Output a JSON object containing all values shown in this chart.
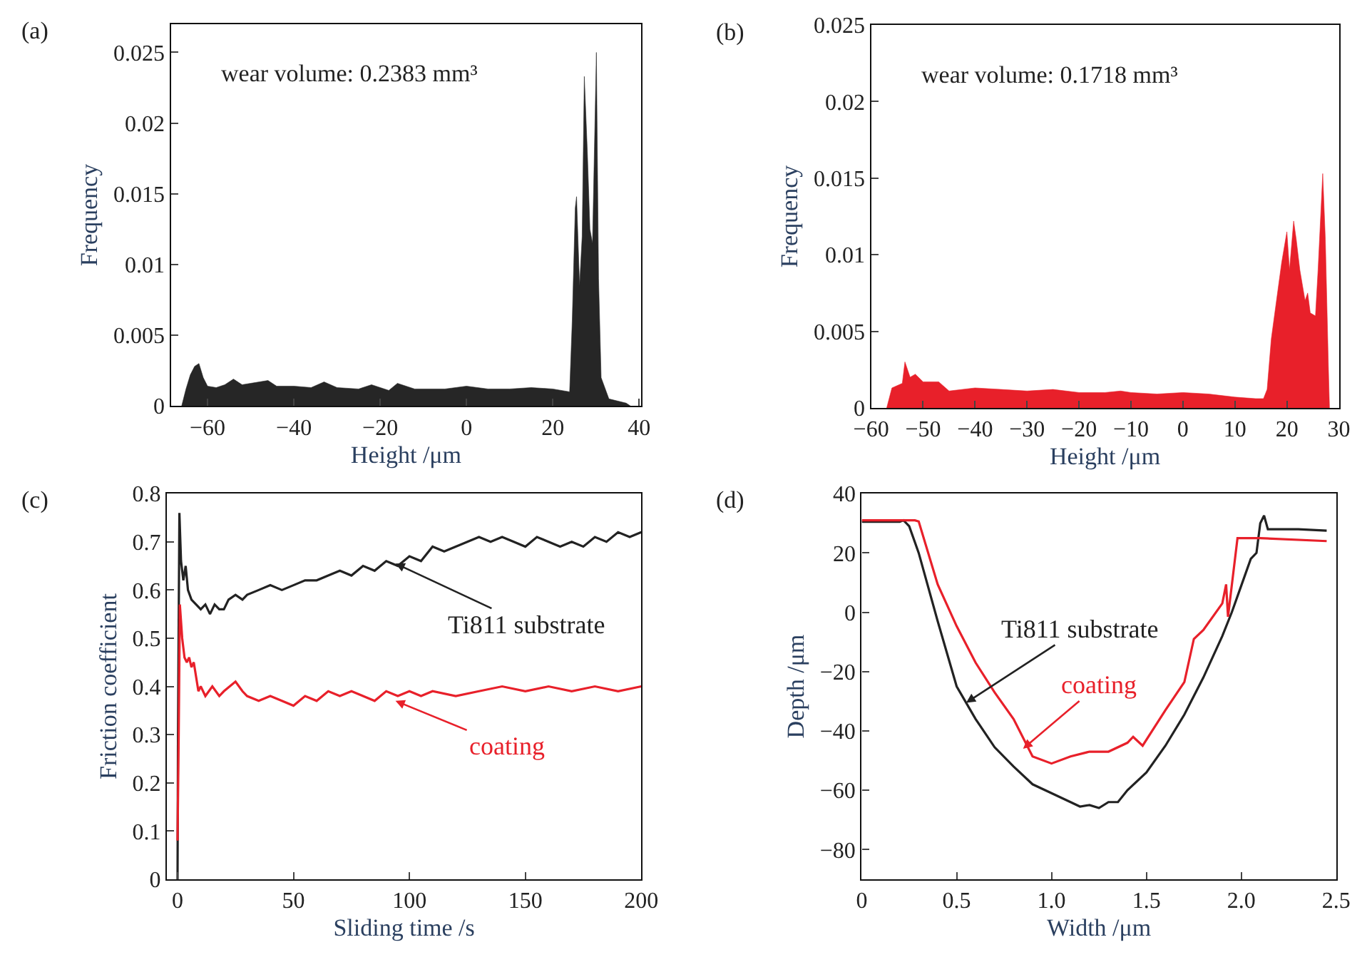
{
  "chart_data": [
    {
      "type": "area",
      "title": "(a)",
      "xlabel": "Height /μm",
      "ylabel": "Frequency",
      "xlim": [
        -68.5,
        40.5
      ],
      "ylim": [
        0,
        0.027
      ],
      "xticks": [
        -60,
        -40,
        -20,
        0,
        20,
        40
      ],
      "yticks": [
        0,
        0.005,
        0.01,
        0.015,
        0.02,
        0.025
      ],
      "annotations": [
        "wear volume: 0.2383 mm³"
      ],
      "x": [
        -66,
        -65,
        -64,
        -63,
        -62,
        -61,
        -60,
        -58,
        -56,
        -54,
        -52,
        -50,
        -46,
        -44,
        -40,
        -36,
        -33,
        -30,
        -25,
        -22,
        -18,
        -16,
        -12,
        -5,
        0,
        5,
        10,
        15,
        20,
        23.9,
        24.5,
        25.2,
        25.5,
        26.2,
        26.8,
        27.3,
        28,
        28.6,
        29.2,
        30.1,
        30.6,
        31.2,
        33,
        37,
        38
      ],
      "series": [
        {
          "color": "#262626",
          "values": [
            0,
            0.0012,
            0.0022,
            0.0028,
            0.003,
            0.002,
            0.0014,
            0.0013,
            0.0015,
            0.0019,
            0.0015,
            0.0016,
            0.0018,
            0.0014,
            0.0014,
            0.0013,
            0.0017,
            0.0013,
            0.0012,
            0.0015,
            0.0011,
            0.0016,
            0.0012,
            0.0012,
            0.0014,
            0.0012,
            0.0012,
            0.0013,
            0.0012,
            0.001,
            0.006,
            0.014,
            0.0148,
            0.0085,
            0.012,
            0.0233,
            0.018,
            0.0125,
            0.0115,
            0.025,
            0.009,
            0.002,
            0.0005,
            0.0002,
            0
          ]
        }
      ]
    },
    {
      "type": "area",
      "title": "(b)",
      "xlabel": "Height /μm",
      "ylabel": "Frequency",
      "xlim": [
        -60,
        30
      ],
      "ylim": [
        0,
        0.025
      ],
      "xticks": [
        -60,
        -50,
        -40,
        -30,
        -20,
        -10,
        0,
        10,
        20,
        30
      ],
      "yticks": [
        0,
        0.005,
        0.01,
        0.015,
        0.02,
        0.025
      ],
      "annotations": [
        "wear volume: 0.1718 mm³"
      ],
      "x": [
        -57,
        -56,
        -54,
        -53.5,
        -52.5,
        -51.5,
        -50,
        -47,
        -45,
        -40,
        -35,
        -30,
        -25,
        -20,
        -15,
        -12,
        -10,
        -5,
        0,
        5,
        10,
        14,
        15.5,
        16.2,
        17,
        18,
        19,
        20,
        20.5,
        21.3,
        21.8,
        22.5,
        23.5,
        24,
        24.5,
        25.5,
        26,
        26.9,
        27.4,
        28,
        28.2
      ],
      "series": [
        {
          "color": "#e8202a",
          "values": [
            0,
            0.0013,
            0.0016,
            0.003,
            0.002,
            0.0022,
            0.0017,
            0.0017,
            0.0011,
            0.0013,
            0.0012,
            0.0011,
            0.0012,
            0.001,
            0.001,
            0.0011,
            0.001,
            0.0009,
            0.001,
            0.0009,
            0.0007,
            0.0006,
            0.0006,
            0.0012,
            0.0045,
            0.007,
            0.0095,
            0.0115,
            0.009,
            0.0122,
            0.011,
            0.009,
            0.007,
            0.0075,
            0.0062,
            0.006,
            0.009,
            0.0153,
            0.011,
            0.0025,
            0
          ]
        }
      ]
    },
    {
      "type": "line",
      "title": "(c)",
      "xlabel": "Sliding time /s",
      "ylabel": "Friction coefficient",
      "xlim": [
        -4.6,
        200
      ],
      "ylim": [
        0,
        0.8
      ],
      "xticks": [
        0,
        50,
        100,
        150,
        200
      ],
      "yticks": [
        0,
        0.1,
        0.2,
        0.3,
        0.4,
        0.5,
        0.6,
        0.7,
        0.8
      ],
      "marker": "none",
      "line_style": "solid",
      "annotations": [
        {
          "text": "Ti811 substrate",
          "x": 94,
          "y": 0.655
        },
        {
          "text": "coating",
          "x": 94,
          "y": 0.37
        }
      ],
      "series": [
        {
          "color": "#222222",
          "x": [
            0,
            0.2,
            0.8,
            1.5,
            2.5,
            3.5,
            4.5,
            6,
            8,
            10,
            12,
            14,
            16,
            18,
            20,
            22,
            25,
            28,
            30,
            35,
            40,
            45,
            50,
            55,
            60,
            65,
            70,
            75,
            80,
            85,
            90,
            95,
            100,
            105,
            110,
            115,
            120,
            125,
            130,
            135,
            140,
            145,
            150,
            155,
            160,
            165,
            170,
            175,
            180,
            185,
            190,
            195,
            200
          ],
          "values": [
            0,
            0.3,
            0.76,
            0.66,
            0.62,
            0.65,
            0.6,
            0.58,
            0.57,
            0.56,
            0.57,
            0.55,
            0.57,
            0.56,
            0.56,
            0.58,
            0.59,
            0.58,
            0.59,
            0.6,
            0.61,
            0.6,
            0.61,
            0.62,
            0.62,
            0.63,
            0.64,
            0.63,
            0.65,
            0.64,
            0.66,
            0.65,
            0.67,
            0.66,
            0.69,
            0.68,
            0.69,
            0.7,
            0.71,
            0.7,
            0.71,
            0.7,
            0.69,
            0.71,
            0.7,
            0.69,
            0.7,
            0.69,
            0.71,
            0.7,
            0.72,
            0.71,
            0.72
          ]
        },
        {
          "color": "#e8202a",
          "x": [
            0,
            0.5,
            1,
            2,
            3,
            4,
            5,
            6,
            7,
            8,
            9,
            10,
            12,
            15,
            18,
            20,
            25,
            28,
            30,
            35,
            40,
            45,
            50,
            55,
            60,
            65,
            70,
            75,
            80,
            85,
            90,
            95,
            100,
            105,
            110,
            120,
            130,
            140,
            150,
            160,
            170,
            180,
            190,
            200
          ],
          "values": [
            0.08,
            0.3,
            0.57,
            0.5,
            0.46,
            0.45,
            0.46,
            0.44,
            0.45,
            0.42,
            0.39,
            0.4,
            0.38,
            0.4,
            0.38,
            0.39,
            0.41,
            0.39,
            0.38,
            0.37,
            0.38,
            0.37,
            0.36,
            0.38,
            0.37,
            0.39,
            0.38,
            0.39,
            0.38,
            0.37,
            0.39,
            0.38,
            0.39,
            0.38,
            0.39,
            0.38,
            0.39,
            0.4,
            0.39,
            0.4,
            0.39,
            0.4,
            0.39,
            0.4
          ]
        }
      ]
    },
    {
      "type": "line",
      "title": "(d)",
      "xlabel": "Width /μm",
      "ylabel": "Depth /μm",
      "xlim": [
        0,
        2.5
      ],
      "ylim": [
        -90,
        40
      ],
      "xticks": [
        0,
        0.5,
        {
          "value": 1,
          "label": "1.0"
        },
        1.5,
        {
          "value": 2,
          "label": "2.0"
        },
        2.5
      ],
      "yticks": [
        -80,
        -60,
        -40,
        -20,
        0,
        20,
        40
      ],
      "marker": "none",
      "line_style": "solid",
      "annotations": [
        {
          "text": "Ti811 substrate",
          "x": 0.55,
          "y": -30.5
        },
        {
          "text": "coating",
          "x": 0.85,
          "y": -46
        }
      ],
      "series": [
        {
          "color": "#222222",
          "x": [
            0,
            0.2,
            0.22,
            0.25,
            0.3,
            0.4,
            0.5,
            0.6,
            0.7,
            0.8,
            0.9,
            1.0,
            1.1,
            1.15,
            1.2,
            1.25,
            1.3,
            1.35,
            1.4,
            1.5,
            1.6,
            1.7,
            1.8,
            1.9,
            1.95,
            2.0,
            2.05,
            2.08,
            2.1,
            2.12,
            2.14,
            2.3,
            2.45
          ],
          "values": [
            30.5,
            30.5,
            31,
            29,
            20,
            -3,
            -25,
            -36,
            -45.5,
            -52,
            -58,
            -61,
            -64,
            -65.5,
            -65,
            -66,
            -64,
            -64,
            -60,
            -54,
            -45,
            -34.5,
            -22,
            -8,
            0,
            9,
            18,
            20,
            30,
            32.6,
            28,
            28,
            27.5
          ]
        },
        {
          "color": "#e8202a",
          "x": [
            0,
            0.28,
            0.3,
            0.4,
            0.5,
            0.6,
            0.7,
            0.8,
            0.9,
            1.0,
            1.1,
            1.2,
            1.3,
            1.4,
            1.43,
            1.48,
            1.6,
            1.7,
            1.75,
            1.8,
            1.9,
            1.92,
            1.93,
            1.98,
            2.1,
            2.45
          ],
          "values": [
            31,
            31,
            30.6,
            9.4,
            -4.7,
            -17,
            -27,
            -36,
            -48.6,
            -51,
            -48.6,
            -47,
            -47,
            -44,
            -42,
            -45,
            -33,
            -23.5,
            -9,
            -6,
            3,
            9.4,
            -1.5,
            25,
            25,
            24
          ]
        }
      ]
    }
  ]
}
